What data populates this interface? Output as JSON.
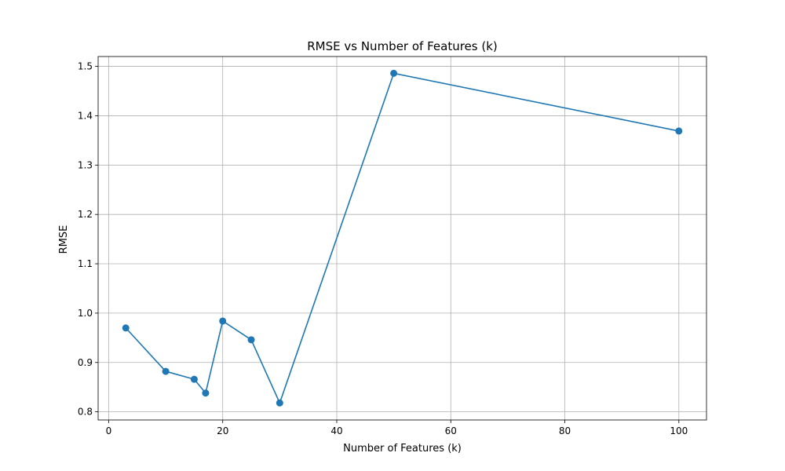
{
  "chart_data": {
    "type": "line",
    "title": "RMSE vs Number of Features (k)",
    "xlabel": "Number of Features (k)",
    "ylabel": "RMSE",
    "xlim": [
      -1.85,
      104.85
    ],
    "ylim": [
      0.7835,
      1.52
    ],
    "x_ticks": [
      0,
      20,
      40,
      60,
      80,
      100
    ],
    "x_tick_labels": [
      "0",
      "20",
      "40",
      "60",
      "80",
      "100"
    ],
    "y_ticks": [
      0.8,
      0.9,
      1.0,
      1.1,
      1.2,
      1.3,
      1.4,
      1.5
    ],
    "y_tick_labels": [
      "0.8",
      "0.9",
      "1.0",
      "1.1",
      "1.2",
      "1.3",
      "1.4",
      "1.5"
    ],
    "grid": true,
    "series": [
      {
        "color": "#1f77b4",
        "marker": "circle",
        "x": [
          3,
          10,
          15,
          17,
          20,
          25,
          30,
          50,
          100
        ],
        "y": [
          0.97,
          0.882,
          0.866,
          0.838,
          0.984,
          0.946,
          0.818,
          1.486,
          1.369
        ]
      }
    ]
  }
}
